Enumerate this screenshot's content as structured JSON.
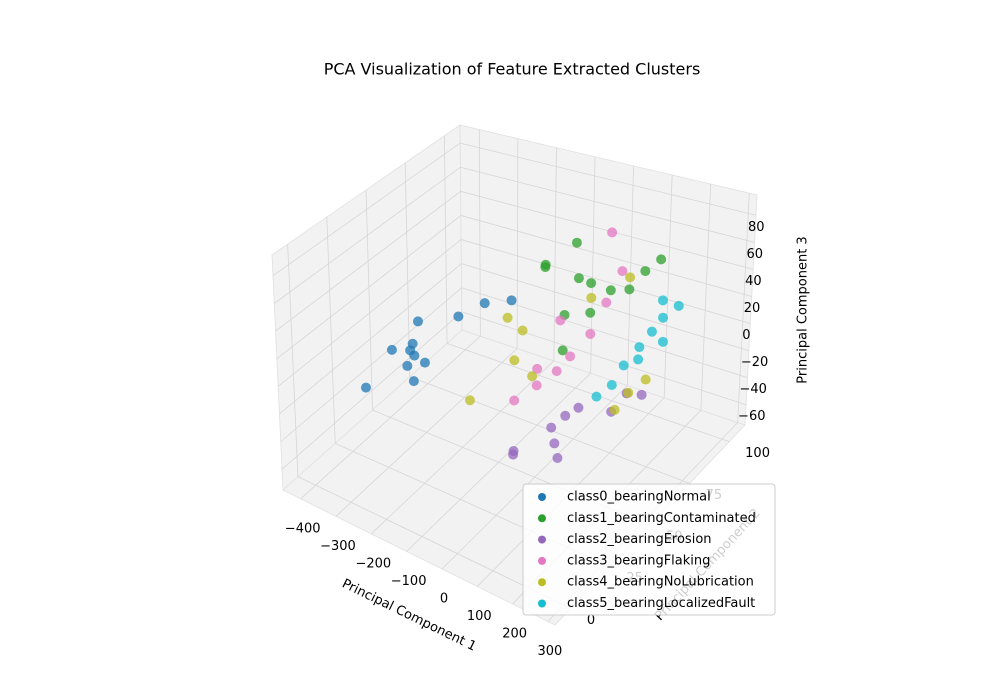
{
  "chart_data": {
    "type": "scatter3d",
    "title": "PCA Visualization of Feature Extracted Clusters",
    "xlabel": "Principal Component 1",
    "ylabel": "Principal Component 2",
    "zlabel": "Principal Component 3",
    "xlim": [
      -450,
      320
    ],
    "ylim": [
      -10,
      110
    ],
    "zlim": [
      -75,
      95
    ],
    "xticks": [
      {
        "value": -400,
        "label": "−400"
      },
      {
        "value": -300,
        "label": "−300"
      },
      {
        "value": -200,
        "label": "−200"
      },
      {
        "value": -100,
        "label": "−100"
      },
      0,
      100,
      200,
      300
    ],
    "yticks": [
      0,
      25,
      50,
      75,
      100
    ],
    "zticks": [
      {
        "value": -60,
        "label": "−60"
      },
      {
        "value": -40,
        "label": "−40"
      },
      {
        "value": -20,
        "label": "−20"
      },
      0,
      20,
      40,
      60,
      80
    ],
    "grid": true,
    "legend": "lower right",
    "series": [
      {
        "name": "class0_bearingNormal",
        "color": "#1f77b4",
        "x": [
          -320,
          -300,
          -330,
          -290,
          -310,
          -340,
          -280,
          -350,
          -380,
          -230,
          -180,
          -150
        ],
        "y": [
          45,
          42,
          50,
          40,
          48,
          38,
          45,
          50,
          30,
          55,
          60,
          70
        ],
        "z": [
          -10,
          0,
          -20,
          -25,
          10,
          -5,
          -15,
          -30,
          -30,
          15,
          25,
          20
        ]
      },
      {
        "name": "class1_bearingContaminated",
        "color": "#2ca02c",
        "x": [
          -60,
          -40,
          20,
          40,
          80,
          100,
          120,
          60,
          0,
          -20,
          140,
          30
        ],
        "y": [
          70,
          65,
          72,
          75,
          78,
          85,
          90,
          70,
          68,
          80,
          95,
          60
        ],
        "z": [
          55,
          60,
          50,
          45,
          40,
          35,
          45,
          30,
          25,
          65,
          50,
          10
        ]
      },
      {
        "name": "class2_bearingErosion",
        "color": "#9467bd",
        "x": [
          -23,
          -40,
          0,
          60,
          80,
          -80,
          -60,
          20,
          100,
          -10
        ],
        "y": [
          75,
          70,
          78,
          85,
          90,
          55,
          50,
          60,
          95,
          65
        ],
        "z": [
          -60,
          -65,
          -55,
          -60,
          -50,
          -70,
          -65,
          -70,
          -55,
          -68
        ]
      },
      {
        "name": "class3_bearingFlaking",
        "color": "#e377c2",
        "x": [
          -23,
          -60,
          0,
          20,
          40,
          -100,
          60,
          -40,
          10,
          -80
        ],
        "y": [
          69,
          65,
          72,
          80,
          85,
          60,
          90,
          75,
          95,
          70
        ],
        "z": [
          -20,
          -30,
          -10,
          0,
          20,
          -40,
          40,
          10,
          60,
          -25
        ]
      },
      {
        "name": "class4_bearingNoLubrication",
        "color": "#bcbd22",
        "x": [
          -148,
          -120,
          -100,
          109,
          90,
          130,
          -200,
          60,
          0,
          -60
        ],
        "y": [
          67,
          70,
          60,
          84,
          80,
          90,
          55,
          95,
          85,
          62
        ],
        "z": [
          10,
          0,
          -10,
          -40,
          -50,
          -35,
          -45,
          30,
          20,
          -20
        ]
      },
      {
        "name": "class5_bearingLocalizedFault",
        "color": "#17becf",
        "x": [
          110,
          130,
          90,
          150,
          70,
          40,
          100,
          120,
          60,
          140
        ],
        "y": [
          98,
          100,
          95,
          105,
          90,
          80,
          92,
          102,
          85,
          98
        ],
        "z": [
          -10,
          0,
          -20,
          5,
          -30,
          -45,
          -25,
          10,
          -40,
          -15
        ]
      }
    ]
  }
}
